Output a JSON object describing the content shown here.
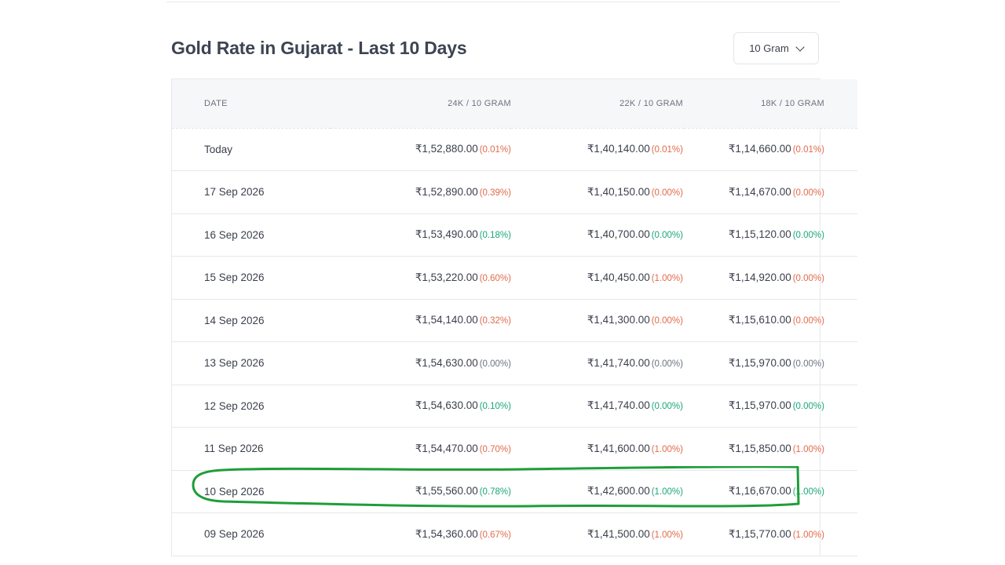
{
  "title": "Gold Rate in Gujarat - Last 10 Days",
  "unit_selector": {
    "selected": "10 Gram"
  },
  "table": {
    "headers": [
      "DATE",
      "24K / 10 GRAM",
      "22K / 10 GRAM",
      "18K / 10 GRAM"
    ],
    "rows": [
      {
        "date": "Today",
        "k24": "₹1,52,880.00",
        "k24c": "(0.01%)",
        "k24d": "up",
        "k22": "₹1,40,140.00",
        "k22c": "(0.01%)",
        "k22d": "up",
        "k18": "₹1,14,660.00",
        "k18c": "(0.01%)",
        "k18d": "up"
      },
      {
        "date": "17 Sep 2026",
        "k24": "₹1,52,890.00",
        "k24c": "(0.39%)",
        "k24d": "up",
        "k22": "₹1,40,150.00",
        "k22c": "(0.00%)",
        "k22d": "up",
        "k18": "₹1,14,670.00",
        "k18c": "(0.00%)",
        "k18d": "up"
      },
      {
        "date": "16 Sep 2026",
        "k24": "₹1,53,490.00",
        "k24c": "(0.18%)",
        "k24d": "down",
        "k22": "₹1,40,700.00",
        "k22c": "(0.00%)",
        "k22d": "down",
        "k18": "₹1,15,120.00",
        "k18c": "(0.00%)",
        "k18d": "down"
      },
      {
        "date": "15 Sep 2026",
        "k24": "₹1,53,220.00",
        "k24c": "(0.60%)",
        "k24d": "up",
        "k22": "₹1,40,450.00",
        "k22c": "(1.00%)",
        "k22d": "up",
        "k18": "₹1,14,920.00",
        "k18c": "(0.00%)",
        "k18d": "up"
      },
      {
        "date": "14 Sep 2026",
        "k24": "₹1,54,140.00",
        "k24c": "(0.32%)",
        "k24d": "up",
        "k22": "₹1,41,300.00",
        "k22c": "(0.00%)",
        "k22d": "up",
        "k18": "₹1,15,610.00",
        "k18c": "(0.00%)",
        "k18d": "up"
      },
      {
        "date": "13 Sep 2026",
        "k24": "₹1,54,630.00",
        "k24c": "(0.00%)",
        "k24d": "flat",
        "k22": "₹1,41,740.00",
        "k22c": "(0.00%)",
        "k22d": "flat",
        "k18": "₹1,15,970.00",
        "k18c": "(0.00%)",
        "k18d": "flat"
      },
      {
        "date": "12 Sep 2026",
        "k24": "₹1,54,630.00",
        "k24c": "(0.10%)",
        "k24d": "down",
        "k22": "₹1,41,740.00",
        "k22c": "(0.00%)",
        "k22d": "down",
        "k18": "₹1,15,970.00",
        "k18c": "(0.00%)",
        "k18d": "down"
      },
      {
        "date": "11 Sep 2026",
        "k24": "₹1,54,470.00",
        "k24c": "(0.70%)",
        "k24d": "up",
        "k22": "₹1,41,600.00",
        "k22c": "(1.00%)",
        "k22d": "up",
        "k18": "₹1,15,850.00",
        "k18c": "(1.00%)",
        "k18d": "up"
      },
      {
        "date": "10 Sep 2026",
        "k24": "₹1,55,560.00",
        "k24c": "(0.78%)",
        "k24d": "down",
        "k22": "₹1,42,600.00",
        "k22c": "(1.00%)",
        "k22d": "down",
        "k18": "₹1,16,670.00",
        "k18c": "(1.00%)",
        "k18d": "down"
      },
      {
        "date": "09 Sep 2026",
        "k24": "₹1,54,360.00",
        "k24c": "(0.67%)",
        "k24d": "up",
        "k22": "₹1,41,500.00",
        "k22c": "(1.00%)",
        "k22d": "up",
        "k18": "₹1,15,770.00",
        "k18c": "(1.00%)",
        "k18d": "up"
      }
    ]
  },
  "annotation": {
    "highlight_color": "#1f9d3a"
  }
}
